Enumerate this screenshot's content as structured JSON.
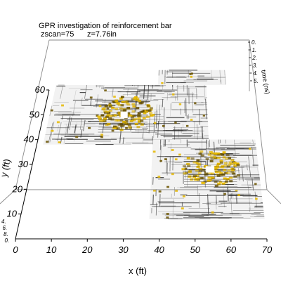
{
  "chart_data": {
    "type": "heatmap",
    "title": "GPR investigation of reinforcement bar",
    "subtitle_zscan": "zscan=75",
    "subtitle_z": "z=7.76in",
    "xlabel": "x (ft)",
    "ylabel": "y (ft)",
    "zlabel": "time (ns)",
    "xlim": [
      0,
      70
    ],
    "ylim": [
      0,
      60
    ],
    "x_ticks": [
      "0",
      "10",
      "20",
      "30",
      "40",
      "50",
      "60",
      "70"
    ],
    "y_ticks": [
      "10",
      "20",
      "30",
      "40",
      "50",
      "60"
    ],
    "z_ticks": [
      "0.",
      "1.",
      "2.",
      "3.",
      "4.",
      "5."
    ],
    "left_z_ticks": [
      "4.",
      "6.",
      "8.",
      "0."
    ],
    "colors": {
      "background": "#ffffff",
      "texture_light": "#f2f2f2",
      "rebar_line": "#2a2a2a",
      "reflection": "#e6b800",
      "reflection_dark": "#6b5300",
      "box_line": "#888888"
    },
    "scan_regions": [
      {
        "name": "upper-left-block",
        "x_range": [
          2,
          55
        ],
        "y_range": [
          38,
          62
        ]
      },
      {
        "name": "upper-right-strip",
        "x_range": [
          38,
          62
        ],
        "y_range": [
          62,
          68
        ]
      },
      {
        "name": "lower-right-block",
        "x_range": [
          37,
          70
        ],
        "y_range": [
          8,
          40
        ]
      }
    ],
    "hotspots": [
      {
        "name": "hotspot-upper",
        "x": 27,
        "y": 50,
        "level": 0.95
      },
      {
        "name": "hotspot-lower",
        "x": 55,
        "y": 28,
        "level": 0.95
      }
    ],
    "bright_patches": [
      {
        "x": 27,
        "y": 50
      },
      {
        "x": 55,
        "y": 28
      }
    ]
  }
}
